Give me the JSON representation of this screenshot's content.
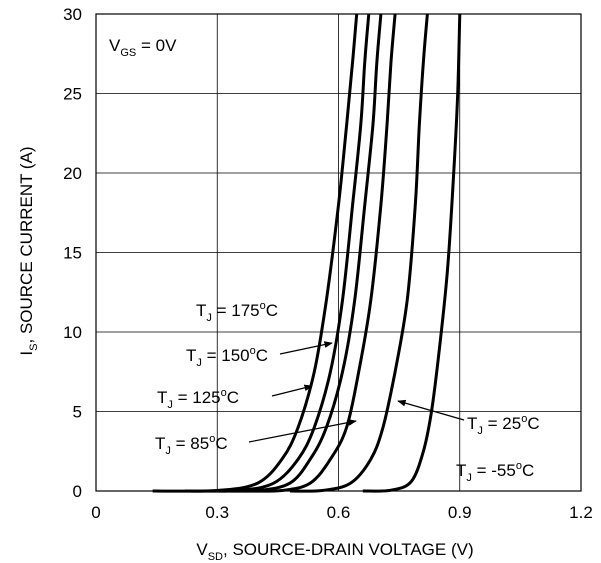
{
  "chart_data": {
    "type": "line",
    "title": "",
    "xlabel": {
      "pre": "V",
      "sub": "SD",
      "post": ", SOURCE-DRAIN VOLTAGE (V)"
    },
    "ylabel": {
      "pre": "I",
      "sub": "S",
      "post": ", SOURCE CURRENT (A)"
    },
    "xlim": [
      0,
      1.2
    ],
    "ylim": [
      0,
      30
    ],
    "x_ticks": [
      "0",
      "0.3",
      "0.6",
      "0.9",
      "1.2"
    ],
    "y_ticks": [
      "0",
      "5",
      "10",
      "15",
      "20",
      "25",
      "30"
    ],
    "grid": true,
    "condition": {
      "pre": "V",
      "sub": "GS",
      "post": " = 0V"
    },
    "series": [
      {
        "name": "T_J = 175°C",
        "label": {
          "pre": "T",
          "sub": "J",
          "mid": " = 175",
          "sup": "o",
          "post": "C"
        },
        "points": [
          [
            0.14,
            0.0
          ],
          [
            0.3,
            0.03
          ],
          [
            0.4,
            0.5
          ],
          [
            0.46,
            2
          ],
          [
            0.5,
            4
          ],
          [
            0.54,
            7.5
          ],
          [
            0.57,
            12
          ],
          [
            0.6,
            18
          ],
          [
            0.62,
            23
          ],
          [
            0.635,
            27
          ],
          [
            0.645,
            30
          ]
        ]
      },
      {
        "name": "T_J = 150°C",
        "label": {
          "pre": "T",
          "sub": "J",
          "mid": " = 150",
          "sup": "o",
          "post": "C"
        },
        "points": [
          [
            0.22,
            0.0
          ],
          [
            0.35,
            0.03
          ],
          [
            0.44,
            0.5
          ],
          [
            0.5,
            2
          ],
          [
            0.54,
            4
          ],
          [
            0.58,
            7.5
          ],
          [
            0.61,
            12
          ],
          [
            0.635,
            18
          ],
          [
            0.655,
            23
          ],
          [
            0.665,
            27
          ],
          [
            0.675,
            30
          ]
        ]
      },
      {
        "name": "T_J = 125°C",
        "label": {
          "pre": "T",
          "sub": "J",
          "mid": " = 125",
          "sup": "o",
          "post": "C"
        },
        "points": [
          [
            0.3,
            0.0
          ],
          [
            0.4,
            0.03
          ],
          [
            0.48,
            0.5
          ],
          [
            0.53,
            2
          ],
          [
            0.57,
            4
          ],
          [
            0.61,
            7.5
          ],
          [
            0.64,
            12
          ],
          [
            0.665,
            18
          ],
          [
            0.685,
            23
          ],
          [
            0.695,
            27
          ],
          [
            0.705,
            30
          ]
        ]
      },
      {
        "name": "T_J = 85°C",
        "label": {
          "pre": "T",
          "sub": "J",
          "mid": " = 85",
          "sup": "o",
          "post": "C"
        },
        "points": [
          [
            0.37,
            0.0
          ],
          [
            0.46,
            0.03
          ],
          [
            0.53,
            0.5
          ],
          [
            0.58,
            2
          ],
          [
            0.62,
            4
          ],
          [
            0.65,
            7.5
          ],
          [
            0.68,
            12
          ],
          [
            0.705,
            18
          ],
          [
            0.72,
            23
          ],
          [
            0.73,
            27
          ],
          [
            0.74,
            30
          ]
        ]
      },
      {
        "name": "T_J = 25°C",
        "label": {
          "pre": "T",
          "sub": "J",
          "mid": " = 25",
          "sup": "o",
          "post": "C"
        },
        "points": [
          [
            0.48,
            0.0
          ],
          [
            0.56,
            0.03
          ],
          [
            0.63,
            0.5
          ],
          [
            0.68,
            2
          ],
          [
            0.71,
            4
          ],
          [
            0.74,
            7.5
          ],
          [
            0.77,
            12
          ],
          [
            0.79,
            18
          ],
          [
            0.8,
            23
          ],
          [
            0.81,
            27
          ],
          [
            0.82,
            30
          ]
        ]
      },
      {
        "name": "T_J = -55°C",
        "label": {
          "pre": "T",
          "sub": "J",
          "mid": " = -55",
          "sup": "o",
          "post": "C"
        },
        "points": [
          [
            0.66,
            0.0
          ],
          [
            0.73,
            0.05
          ],
          [
            0.78,
            0.6
          ],
          [
            0.81,
            2.5
          ],
          [
            0.83,
            5
          ],
          [
            0.85,
            9
          ],
          [
            0.87,
            14
          ],
          [
            0.885,
            20
          ],
          [
            0.895,
            25
          ],
          [
            0.9,
            30
          ]
        ]
      }
    ]
  }
}
